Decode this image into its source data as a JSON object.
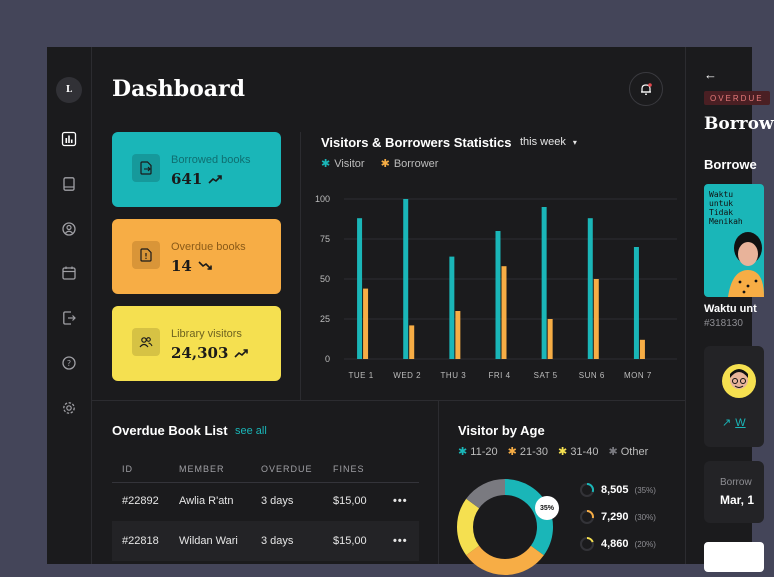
{
  "app": {
    "logo_letter": "L",
    "title": "Dashboard"
  },
  "sidebar": {
    "items": [
      {
        "name": "chart-icon",
        "active": true
      },
      {
        "name": "book-icon",
        "active": false
      },
      {
        "name": "user-icon",
        "active": false
      },
      {
        "name": "calendar-icon",
        "active": false
      },
      {
        "name": "export-icon",
        "active": false
      },
      {
        "name": "help-icon",
        "active": false
      },
      {
        "name": "gear-icon",
        "active": false
      }
    ]
  },
  "stats": [
    {
      "label": "Borrowed books",
      "value": "641",
      "trend": "up",
      "color": "#1ab6b8"
    },
    {
      "label": "Overdue books",
      "value": "14",
      "trend": "down",
      "color": "#f7ad45"
    },
    {
      "label": "Library visitors",
      "value": "24,303",
      "trend": "up",
      "color": "#f5e050"
    }
  ],
  "chart_header": {
    "title": "Visitors & Borrowers Statistics",
    "range": "this week"
  },
  "chart_data": {
    "type": "bar",
    "categories": [
      "TUE 1",
      "WED 2",
      "THU 3",
      "FRI 4",
      "SAT 5",
      "SUN 6",
      "MON 7"
    ],
    "series": [
      {
        "name": "Visitor",
        "color": "#1ab6b8",
        "values": [
          88,
          100,
          64,
          80,
          95,
          88,
          70
        ]
      },
      {
        "name": "Borrower",
        "color": "#f7ad45",
        "values": [
          44,
          21,
          30,
          58,
          25,
          50,
          12
        ]
      }
    ],
    "yticks": [
      0,
      25,
      50,
      75,
      100
    ],
    "ylim": [
      0,
      100
    ],
    "grid": true,
    "legend": "top-left"
  },
  "overdue": {
    "title": "Overdue Book List",
    "see_all": "see all",
    "columns": [
      "ID",
      "MEMBER",
      "OVERDUE",
      "FINES"
    ],
    "rows": [
      {
        "id": "#22892",
        "member": "Awlia R'atn",
        "overdue": "3 days",
        "fines": "$15,00"
      },
      {
        "id": "#22818",
        "member": "Wildan Wari",
        "overdue": "3 days",
        "fines": "$15,00"
      }
    ],
    "more": "•••"
  },
  "age": {
    "title": "Visitor by Age",
    "legend": [
      {
        "label": "11-20",
        "color": "#1ab6b8"
      },
      {
        "label": "21-30",
        "color": "#f7ad45"
      },
      {
        "label": "31-40",
        "color": "#f5e050"
      },
      {
        "label": "Other",
        "color": "#7a7a80"
      }
    ],
    "donut_label": "35%",
    "donut_values": [
      35,
      30,
      20,
      15
    ],
    "rows": [
      {
        "value": "8,505",
        "pct": "(35%)",
        "color": "#1ab6b8"
      },
      {
        "value": "7,290",
        "pct": "(30%)",
        "color": "#f7ad45"
      },
      {
        "value": "4,860",
        "pct": "(20%)",
        "color": "#f5e050"
      }
    ]
  },
  "detail": {
    "badge": "OVERDUE",
    "title": "Borrow",
    "subtitle": "Borrowe",
    "cover_text": "Waktu\nuntuk\nTidak\nMenikah",
    "book_name": "Waktu unt",
    "book_id": "#318130",
    "link": "W",
    "panel_label": "Borrow",
    "panel_value": "Mar, 1"
  }
}
